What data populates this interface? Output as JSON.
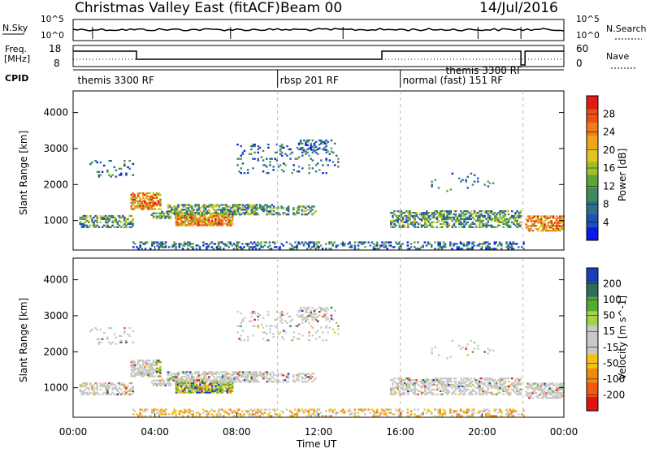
{
  "header": {
    "title": "Christmas Valley East (fitACF)",
    "beam": "Beam 00",
    "date": "14/Jul/2016"
  },
  "top_panels": {
    "nsky_label": "N.Sky",
    "nsky_ticks": [
      "10^5",
      "10^0"
    ],
    "nsearch_label": "N.Search",
    "nsearch_ticks": [
      "10^5",
      "10^0"
    ],
    "freq_label": "Freq.",
    "freq_unit": "[MHz]",
    "freq_ticks": [
      "18",
      "8"
    ],
    "nave_label": "Nave",
    "nave_ticks": [
      "60",
      "0"
    ],
    "cpid_label": "CPID",
    "cpid_modes": [
      {
        "label": "themis 3300 RF",
        "start_hour": 0.1
      },
      {
        "label": "rbsp 201 RF",
        "start_hour": 10.0
      },
      {
        "label": "normal (fast) 151 RF",
        "start_hour": 16.0
      },
      {
        "label": "themis 3300 RF",
        "start_hour": 18.1
      }
    ],
    "mode_boundaries_hours": [
      10,
      16,
      22
    ]
  },
  "chart_data": [
    {
      "type": "heatmap",
      "name": "power",
      "ylabel": "Slant Range [km]",
      "xlabel": "Time UT",
      "x_range_hours": [
        0,
        24
      ],
      "ylim": [
        180,
        4600
      ],
      "y_ticks": [
        1000,
        2000,
        3000,
        4000
      ],
      "colorbar": {
        "label": "Power [dB]",
        "ticks": [
          4,
          8,
          12,
          16,
          20,
          24,
          28
        ],
        "range": [
          0,
          30
        ],
        "colors": [
          "#0b18e6",
          "#1f4fb8",
          "#2d6e8e",
          "#3f8a5f",
          "#5da33a",
          "#9cc22a",
          "#e0c51c",
          "#f0a51a",
          "#f27d18",
          "#ee4f16",
          "#e01c15"
        ]
      }
    },
    {
      "type": "heatmap",
      "name": "velocity",
      "ylabel": "Slant Range [km]",
      "xlabel": "Time UT",
      "x_range_hours": [
        0,
        24
      ],
      "ylim": [
        180,
        4600
      ],
      "y_ticks": [
        1000,
        2000,
        3000,
        4000
      ],
      "colorbar": {
        "label": "Velocity [m s^-1]",
        "ticks": [
          200,
          100,
          50,
          15,
          -15,
          -50,
          -100,
          -200
        ],
        "colors": [
          "#1b3eb5",
          "#2f6d5a",
          "#51ad2f",
          "#a3d24b",
          "#c8c8c8",
          "#c8c8c8",
          "#f2c21a",
          "#f08a10",
          "#ef5a12",
          "#e01212"
        ]
      }
    }
  ],
  "x_axis": {
    "ticks": [
      "00:00",
      "04:00",
      "08:00",
      "12:00",
      "16:00",
      "20:00",
      "00:00"
    ],
    "label": "Time UT"
  }
}
